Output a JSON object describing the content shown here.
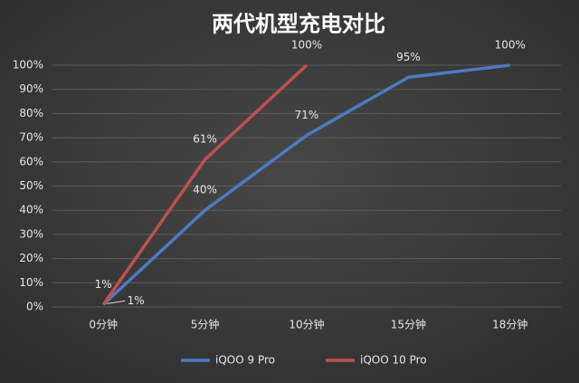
{
  "chart_data": {
    "type": "line",
    "title": "两代机型充电对比",
    "categories": [
      "0分钟",
      "5分钟",
      "10分钟",
      "15分钟",
      "18分钟"
    ],
    "series": [
      {
        "name": "iQOO 9 Pro",
        "color": "#4a7cc2",
        "values": [
          1,
          40,
          71,
          95,
          100
        ],
        "value_labels": [
          "1%",
          "40%",
          "71%",
          "95%",
          "100%"
        ]
      },
      {
        "name": "iQOO 10 Pro",
        "color": "#c0504d",
        "values": [
          1,
          61,
          100,
          null,
          null
        ],
        "value_labels": [
          "1%",
          "61%",
          "100%",
          null,
          null
        ]
      }
    ],
    "ylim": [
      0,
      100
    ],
    "yticks": [
      {
        "value": 0,
        "label": "0%"
      },
      {
        "value": 10,
        "label": "10%"
      },
      {
        "value": 20,
        "label": "20%"
      },
      {
        "value": 30,
        "label": "30%"
      },
      {
        "value": 40,
        "label": "40%"
      },
      {
        "value": 50,
        "label": "50%"
      },
      {
        "value": 60,
        "label": "60%"
      },
      {
        "value": 70,
        "label": "70%"
      },
      {
        "value": 80,
        "label": "80%"
      },
      {
        "value": 90,
        "label": "90%"
      },
      {
        "value": 100,
        "label": "100%"
      }
    ],
    "grid": true,
    "legend": "bottom"
  }
}
